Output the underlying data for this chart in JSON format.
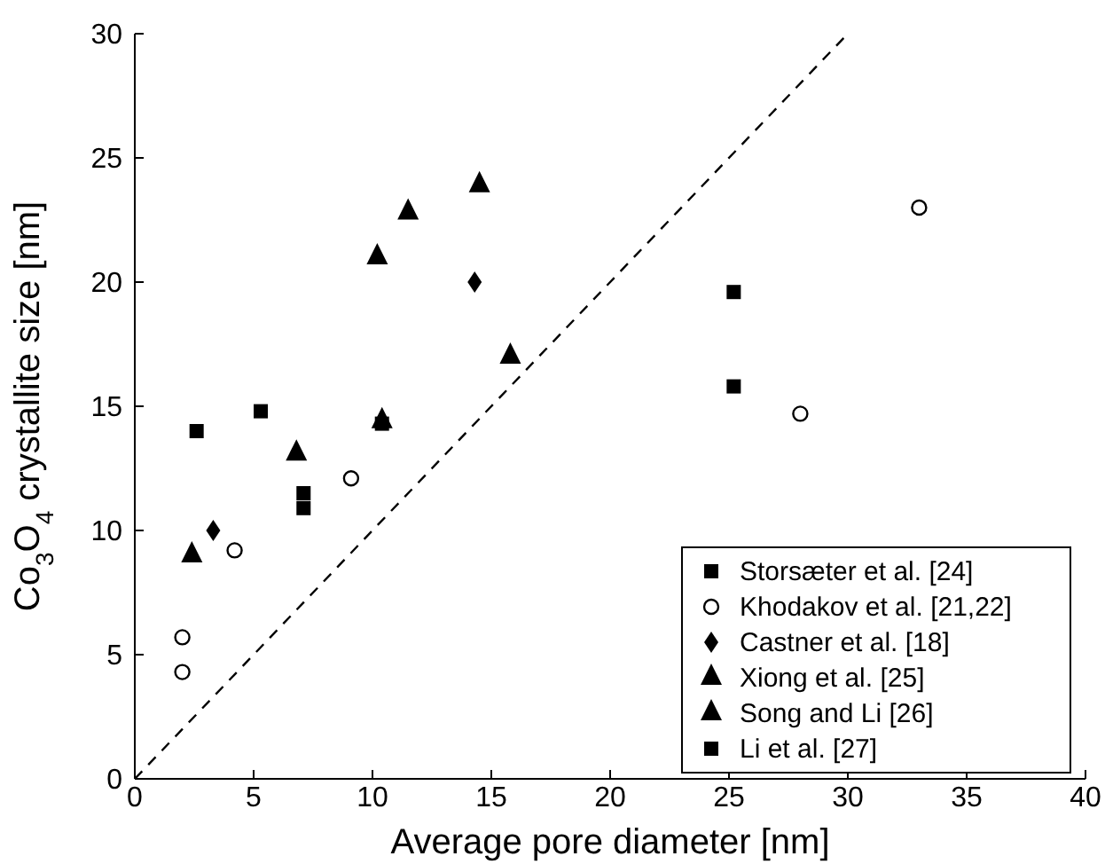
{
  "chart_data": {
    "type": "scatter",
    "xlabel": "Average pore diameter [nm]",
    "ylabel": "Co$_{3}$O$_{4}$ crystallite size [nm]",
    "xlim": [
      0,
      40
    ],
    "xticks": [
      0,
      5,
      10,
      15,
      20,
      25,
      30,
      35,
      40
    ],
    "ylim": [
      0,
      30
    ],
    "yticks": [
      0,
      5,
      10,
      15,
      20,
      25,
      30
    ],
    "grid": false,
    "legend": "bottom right",
    "series": [
      {
        "name": "Storsæter et al. [24]",
        "color": "#000000",
        "marker": "square",
        "x": [
          7.1,
          7.1,
          25.2,
          25.2
        ],
        "values": [
          11.5,
          10.9,
          19.6,
          15.8
        ]
      },
      {
        "name": "Khodakov et al. [21,22]",
        "color": "#000000",
        "marker": "circle",
        "x": [
          2.0,
          2.0,
          4.2,
          9.1,
          28.0,
          33.0
        ],
        "values": [
          5.7,
          4.3,
          9.2,
          12.1,
          14.7,
          23.0
        ]
      },
      {
        "name": "Castner et al. [18]",
        "color": "#000000",
        "marker": "diamond",
        "x": [
          3.3,
          14.3
        ],
        "values": [
          10.0,
          20.0
        ]
      },
      {
        "name": "Xiong et al. [25]",
        "color": "#000000",
        "marker": "triangle",
        "x": [
          10.2,
          11.5,
          14.5
        ],
        "values": [
          21.0,
          22.8,
          23.9
        ]
      },
      {
        "name": "Song and Li [26]",
        "color": "#000000",
        "marker": "triangle",
        "x": [
          2.4,
          6.8,
          10.4,
          15.8
        ],
        "values": [
          9.0,
          13.1,
          14.4,
          17.0
        ]
      },
      {
        "name": "Li et al. [27]",
        "color": "#000000",
        "marker": "square",
        "x": [
          2.6,
          5.3,
          10.4
        ],
        "values": [
          14.0,
          14.8,
          14.3
        ]
      },
      {
        "type": "line",
        "color": "#000000",
        "marker": "none",
        "line_style": "dashed",
        "x": [
          0,
          30
        ],
        "values": [
          0,
          30
        ]
      }
    ]
  }
}
